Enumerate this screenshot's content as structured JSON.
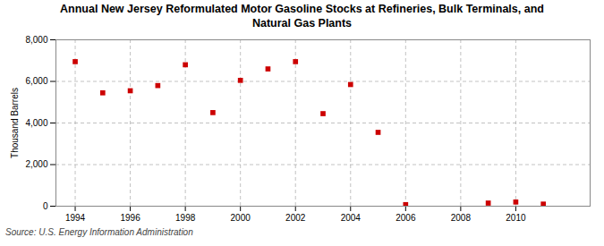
{
  "chart_data": {
    "type": "scatter",
    "title": "Annual New Jersey Reformulated Motor Gasoline Stocks at Refineries, Bulk Terminals, and\nNatural Gas Plants",
    "ylabel": "Thousand Barrels",
    "source": "Source: U.S. Energy Information Administration",
    "x": [
      1994,
      1995,
      1996,
      1997,
      1998,
      1999,
      2000,
      2001,
      2002,
      2003,
      2004,
      2005,
      2006,
      2009,
      2010,
      2011
    ],
    "values": [
      6950,
      5450,
      5550,
      5800,
      6800,
      4500,
      6050,
      6600,
      6950,
      4450,
      5850,
      3550,
      75,
      150,
      200,
      100
    ],
    "color": "#cc0000",
    "marker": "square",
    "xlim": [
      1993.3,
      2012.7
    ],
    "ylim": [
      0,
      8000
    ],
    "xticks": [
      1994,
      1996,
      1998,
      2000,
      2002,
      2004,
      2006,
      2008,
      2010
    ],
    "yticks": [
      0,
      {
        "value": 2000,
        "label": "2,000"
      },
      {
        "value": 4000,
        "label": "4,000"
      },
      {
        "value": 6000,
        "label": "6,000"
      },
      {
        "value": 8000,
        "label": "8,000"
      }
    ],
    "grid": true
  }
}
